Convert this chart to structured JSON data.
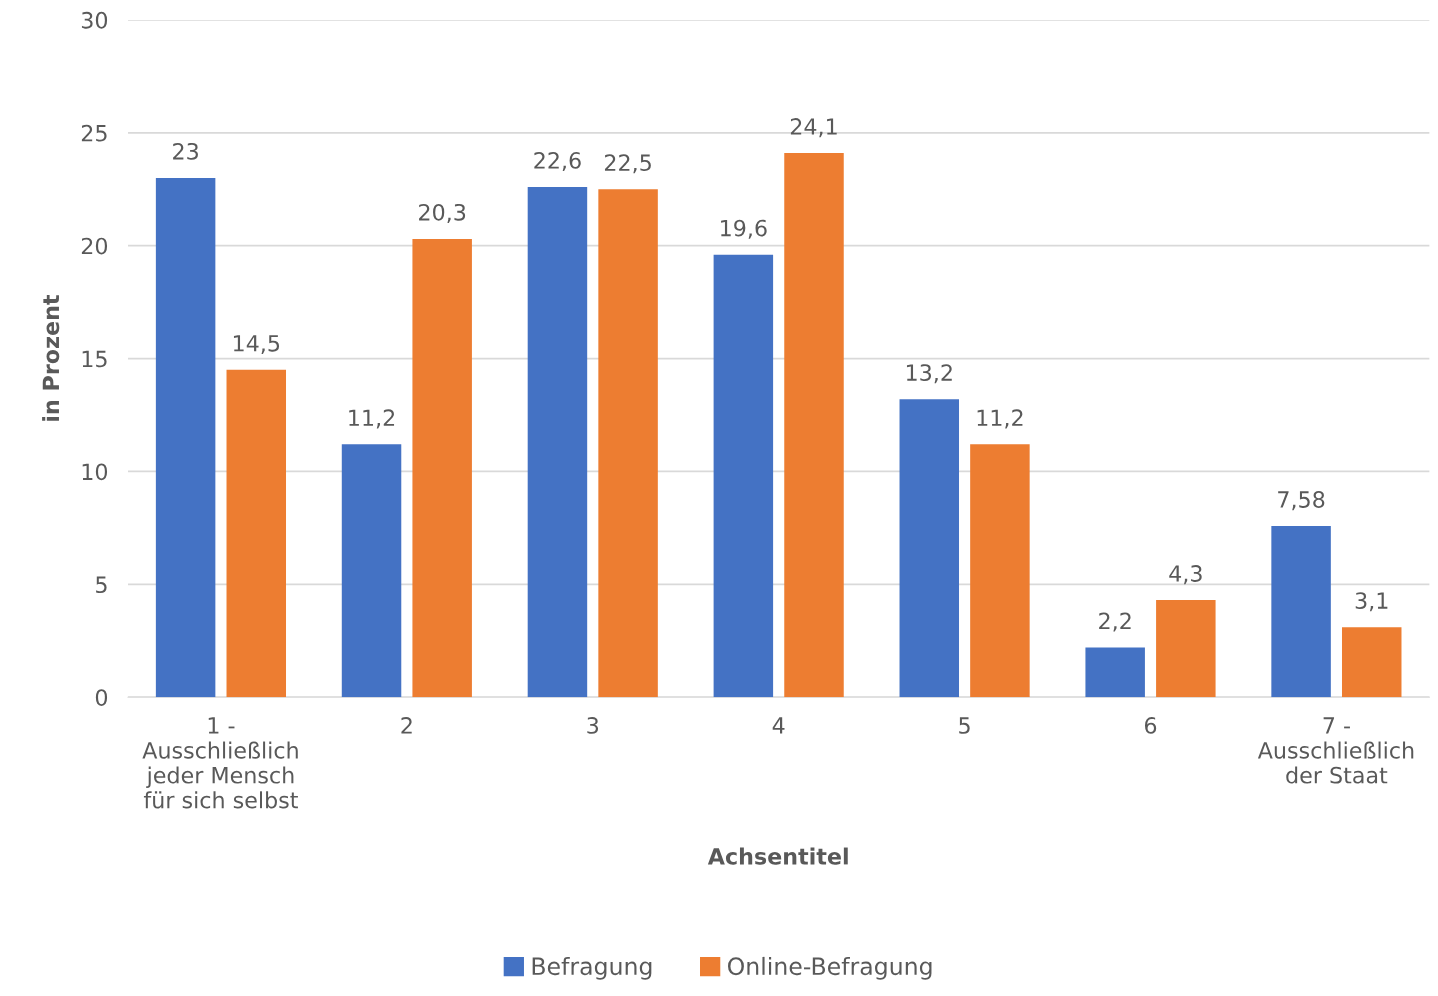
{
  "chart_data": {
    "type": "bar",
    "categories": [
      "1 -\nAusschließlich\njeder Mensch\nfür sich selbst",
      "2",
      "3",
      "4",
      "5",
      "6",
      "7 -\nAusschließlich\nder Staat"
    ],
    "series": [
      {
        "name": "Befragung",
        "color": "#4472c4",
        "values": [
          23,
          11.2,
          22.6,
          19.6,
          13.2,
          2.2,
          7.58
        ],
        "value_labels": [
          "23",
          "11,2",
          "22,6",
          "19,6",
          "13,2",
          "2,2",
          "7,58"
        ]
      },
      {
        "name": "Online-Befragung",
        "color": "#ed7d31",
        "values": [
          14.5,
          20.3,
          22.5,
          24.1,
          11.2,
          4.3,
          3.1
        ],
        "value_labels": [
          "14,5",
          "20,3",
          "22,5",
          "24,1",
          "11,2",
          "4,3",
          "3,1"
        ]
      }
    ],
    "xlabel": "Achsentitel",
    "ylabel": "in Prozent",
    "ylim": [
      0,
      30
    ],
    "yticks": [
      0,
      5,
      10,
      15,
      20,
      25,
      30
    ],
    "grid": "y",
    "legend": "bottom"
  }
}
